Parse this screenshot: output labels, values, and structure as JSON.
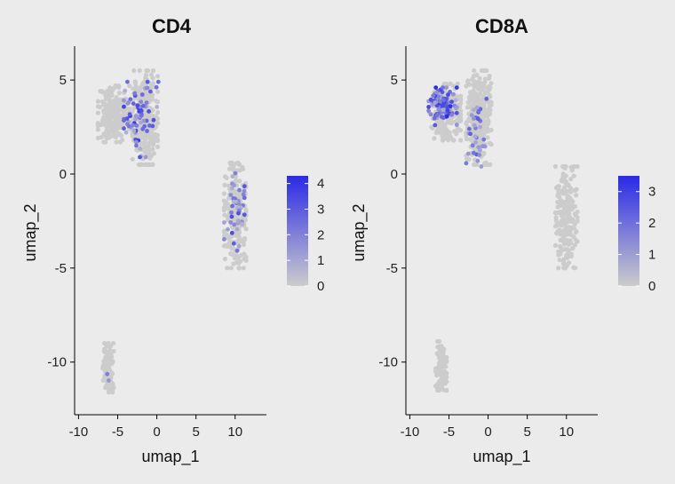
{
  "chart_data": [
    {
      "type": "scatter",
      "title": "CD4",
      "xlabel": "umap_1",
      "ylabel": "umap_2",
      "xlim": [
        -10.5,
        14
      ],
      "ylim": [
        -12.8,
        6.8
      ],
      "x_ticks": [
        -10,
        -5,
        0,
        5,
        10
      ],
      "y_ticks": [
        5,
        0,
        -5,
        -10
      ],
      "x_tick_labels": [
        "-10",
        "-5",
        "0",
        "5",
        "10"
      ],
      "y_tick_labels": [
        "5",
        "0",
        "-5",
        "-10"
      ],
      "grid": false,
      "legend_position": "right",
      "colorbar": {
        "min": 0,
        "max": 4.3,
        "ticks": [
          0,
          1,
          2,
          3,
          4
        ],
        "tick_labels": [
          "0",
          "1",
          "2",
          "3",
          "4"
        ],
        "low_color": "#cccccc",
        "high_color": "#2a2ae6"
      },
      "clusters": [
        {
          "name": "upper-left",
          "cx": -5.5,
          "cy": 3.2,
          "rx": 2.0,
          "ry": 1.5,
          "n": 220
        },
        {
          "name": "upper-center",
          "cx": -1.5,
          "cy": 3.0,
          "rx": 1.6,
          "ry": 2.5,
          "n": 320
        },
        {
          "name": "right",
          "cx": 10.0,
          "cy": -2.2,
          "rx": 1.4,
          "ry": 2.8,
          "n": 230
        },
        {
          "name": "lower",
          "cx": -6.2,
          "cy": -10.3,
          "rx": 0.7,
          "ry": 1.3,
          "n": 110
        }
      ],
      "highlights": [
        {
          "cx": -2.0,
          "cy": 2.9,
          "rx": 2.2,
          "ry": 2.0,
          "n": 70,
          "vmax": 4.0
        },
        {
          "cx": 9.9,
          "cy": -1.9,
          "rx": 1.3,
          "ry": 2.5,
          "n": 45,
          "vmax": 3.5
        },
        {
          "cx": -6.3,
          "cy": -10.7,
          "rx": 0.4,
          "ry": 0.4,
          "n": 2,
          "vmax": 2.5
        }
      ]
    },
    {
      "type": "scatter",
      "title": "CD8A",
      "xlabel": "umap_1",
      "ylabel": "umap_2",
      "xlim": [
        -10.5,
        14
      ],
      "ylim": [
        -12.8,
        6.8
      ],
      "x_ticks": [
        -10,
        -5,
        0,
        5,
        10
      ],
      "y_ticks": [
        5,
        0,
        -5,
        -10
      ],
      "x_tick_labels": [
        "-10",
        "-5",
        "0",
        "5",
        "10"
      ],
      "y_tick_labels": [
        "5",
        "0",
        "-5",
        "-10"
      ],
      "grid": false,
      "legend_position": "right",
      "colorbar": {
        "min": 0,
        "max": 3.5,
        "ticks": [
          0,
          1,
          2,
          3
        ],
        "tick_labels": [
          "0",
          "1",
          "2",
          "3"
        ],
        "low_color": "#cccccc",
        "high_color": "#2a2ae6"
      },
      "clusters": [
        {
          "name": "upper-left",
          "cx": -5.5,
          "cy": 3.3,
          "rx": 2.0,
          "ry": 1.5,
          "n": 220
        },
        {
          "name": "upper-center",
          "cx": -1.2,
          "cy": 3.0,
          "rx": 1.6,
          "ry": 2.5,
          "n": 320
        },
        {
          "name": "right",
          "cx": 10.0,
          "cy": -2.3,
          "rx": 1.4,
          "ry": 2.7,
          "n": 230
        },
        {
          "name": "lower",
          "cx": -6.0,
          "cy": -10.2,
          "rx": 0.7,
          "ry": 1.3,
          "n": 110
        }
      ],
      "highlights": [
        {
          "cx": -5.8,
          "cy": 3.6,
          "rx": 1.8,
          "ry": 1.0,
          "n": 90,
          "vmax": 3.5
        },
        {
          "cx": -1.5,
          "cy": 2.2,
          "rx": 1.3,
          "ry": 1.8,
          "n": 35,
          "vmax": 2.5
        }
      ]
    }
  ]
}
